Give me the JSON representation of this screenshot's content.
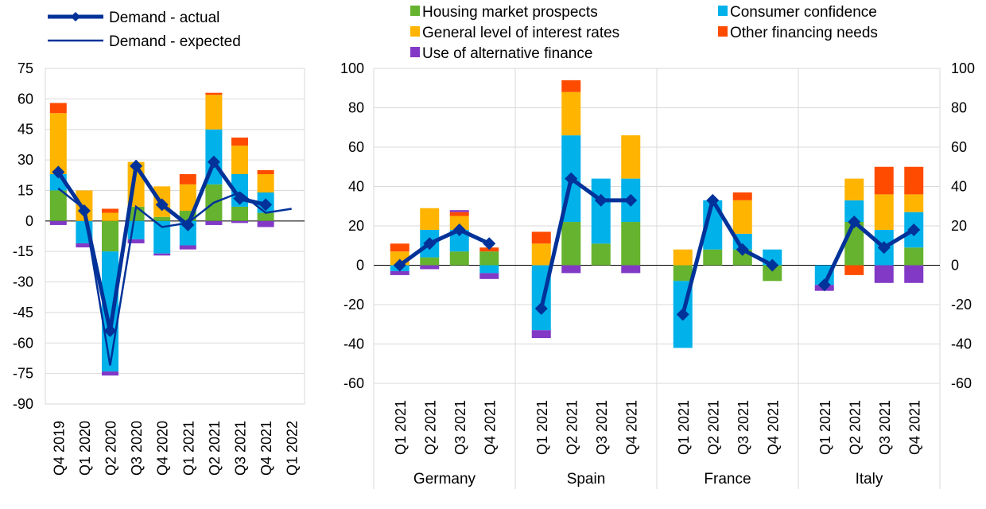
{
  "colors": {
    "housing": "#65B32E",
    "confidence": "#00B1EA",
    "rates": "#FFB400",
    "other": "#FF4B00",
    "alternative": "#8139C6",
    "actual": "#003299",
    "expected": "#003299",
    "grid": "#D9D9D9"
  },
  "chart_data": [
    {
      "type": "bar",
      "subtype": "stacked-bar-with-lines",
      "legend": [
        {
          "key": "actual",
          "label": "Demand - actual"
        },
        {
          "key": "expected",
          "label": "Demand - expected"
        }
      ],
      "categories": [
        "Q4 2019",
        "Q1 2020",
        "Q2 2020",
        "Q3 2020",
        "Q4 2020",
        "Q1 2021",
        "Q2 2021",
        "Q3 2021",
        "Q4 2021",
        "Q1 2022"
      ],
      "yticks": [
        "75",
        "60",
        "45",
        "30",
        "15",
        "0",
        "-15",
        "-30",
        "-45",
        "-60",
        "-75",
        "-90"
      ],
      "ylim": [
        -90,
        75
      ],
      "grid": true,
      "series": [
        {
          "key": "housing",
          "values": [
            15,
            0,
            -15,
            7,
            2,
            5,
            18,
            7,
            4,
            null
          ]
        },
        {
          "key": "confidence",
          "values": [
            8,
            -11,
            -59,
            -9,
            -16,
            -12,
            27,
            16,
            10,
            null
          ]
        },
        {
          "key": "rates",
          "values": [
            30,
            15,
            4,
            22,
            15,
            13,
            17,
            14,
            9,
            null
          ]
        },
        {
          "key": "other",
          "values": [
            5,
            0,
            2,
            0,
            0,
            5,
            1,
            4,
            2,
            null
          ]
        },
        {
          "key": "alternative",
          "values": [
            -2,
            -2,
            -2,
            -2,
            -1,
            -2,
            -2,
            -1,
            -3,
            null
          ]
        },
        {
          "key": "actual",
          "values": [
            24,
            5,
            -54,
            27,
            8,
            -2,
            29,
            11,
            8,
            null
          ]
        },
        {
          "key": "expected",
          "values": [
            16,
            6,
            -71,
            7,
            -3,
            -1,
            9,
            14,
            4,
            6
          ]
        }
      ]
    },
    {
      "type": "bar",
      "subtype": "stacked-bar-with-line",
      "legend": [
        {
          "key": "housing",
          "label": "Housing market prospects"
        },
        {
          "key": "confidence",
          "label": "Consumer confidence"
        },
        {
          "key": "rates",
          "label": "General level of interest rates"
        },
        {
          "key": "other",
          "label": "Other financing needs"
        },
        {
          "key": "alternative",
          "label": "Use of alternative finance"
        }
      ],
      "groups": [
        "Germany",
        "Spain",
        "France",
        "Italy"
      ],
      "categories": [
        "Q1 2021",
        "Q2 2021",
        "Q3 2021",
        "Q4 2021"
      ],
      "yticks": [
        "100",
        "80",
        "60",
        "40",
        "20",
        "0",
        "-20",
        "-40",
        "-60"
      ],
      "ylim": [
        -60,
        100
      ],
      "grid": true,
      "data": [
        {
          "group": "Germany",
          "housing": [
            0,
            4,
            7,
            7
          ],
          "confidence": [
            -3,
            14,
            11,
            -4
          ],
          "rates": [
            7,
            11,
            7,
            0
          ],
          "other": [
            4,
            0,
            2,
            2
          ],
          "alternative": [
            -2,
            -2,
            1,
            -3
          ],
          "actual": [
            0,
            11,
            18,
            11
          ]
        },
        {
          "group": "Spain",
          "housing": [
            0,
            22,
            11,
            22
          ],
          "confidence": [
            -33,
            44,
            33,
            22
          ],
          "rates": [
            11,
            22,
            0,
            22
          ],
          "other": [
            6,
            6,
            0,
            0
          ],
          "alternative": [
            -4,
            -4,
            0,
            -4
          ],
          "actual": [
            -22,
            44,
            33,
            33
          ]
        },
        {
          "group": "France",
          "housing": [
            -8,
            8,
            8,
            -8
          ],
          "confidence": [
            -34,
            25,
            8,
            8
          ],
          "rates": [
            8,
            0,
            17,
            0
          ],
          "other": [
            0,
            0,
            4,
            0
          ],
          "alternative": [
            0,
            0,
            0,
            0
          ],
          "actual": [
            -25,
            33,
            8,
            0
          ]
        },
        {
          "group": "Italy",
          "housing": [
            0,
            22,
            0,
            9
          ],
          "confidence": [
            -10,
            11,
            18,
            18
          ],
          "rates": [
            0,
            11,
            18,
            9
          ],
          "other": [
            0,
            -5,
            14,
            14
          ],
          "alternative": [
            -3,
            0,
            -9,
            -9
          ],
          "actual": [
            -10,
            22,
            9,
            18
          ]
        }
      ]
    }
  ]
}
